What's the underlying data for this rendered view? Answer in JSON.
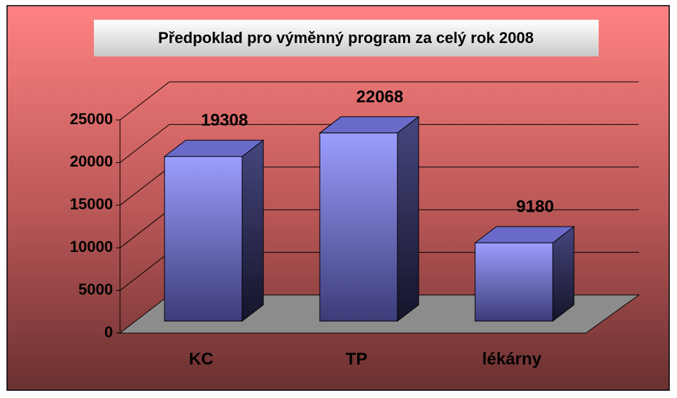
{
  "chart_data": {
    "type": "bar",
    "title": "Předpoklad pro výměnný program za celý rok 2008",
    "categories": [
      "KC",
      "TP",
      "lékárny"
    ],
    "values": [
      19308,
      22068,
      9180
    ],
    "color": "#9999ff",
    "ylim": [
      0,
      25000
    ],
    "yticks": [
      0,
      5000,
      10000,
      15000,
      20000,
      25000
    ],
    "grid": true
  }
}
